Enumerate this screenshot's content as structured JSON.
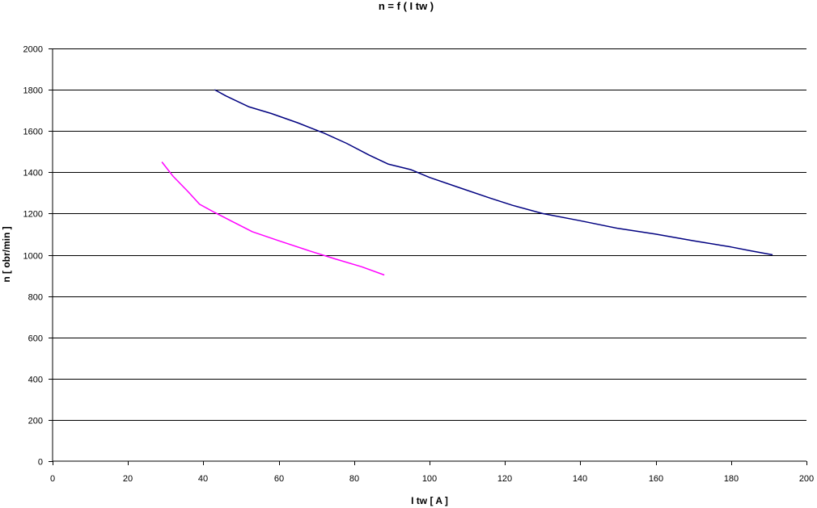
{
  "chart_data": {
    "type": "line",
    "title": "n = f ( I tw )",
    "xlabel": "I tw [ A ]",
    "ylabel": "n [ obr/min ]",
    "xlim": [
      0,
      200
    ],
    "ylim": [
      0,
      2000
    ],
    "x_ticks": [
      "0",
      "20",
      "40",
      "60",
      "80",
      "100",
      "120",
      "140",
      "160",
      "180",
      "200"
    ],
    "y_ticks": [
      "0",
      "200",
      "400",
      "600",
      "800",
      "1000",
      "1200",
      "1400",
      "1600",
      "1800",
      "2000"
    ],
    "grid": "horizontal",
    "legend": "none",
    "series": [
      {
        "color": "#000080",
        "points": [
          [
            43,
            1800
          ],
          [
            46,
            1770
          ],
          [
            52,
            1718
          ],
          [
            58,
            1685
          ],
          [
            65,
            1640
          ],
          [
            72,
            1590
          ],
          [
            78,
            1540
          ],
          [
            84,
            1483
          ],
          [
            89,
            1440
          ],
          [
            95,
            1413
          ],
          [
            100,
            1375
          ],
          [
            108,
            1325
          ],
          [
            116,
            1275
          ],
          [
            122,
            1240
          ],
          [
            130,
            1200
          ],
          [
            140,
            1165
          ],
          [
            150,
            1128
          ],
          [
            160,
            1100
          ],
          [
            170,
            1068
          ],
          [
            180,
            1038
          ],
          [
            185,
            1020
          ],
          [
            191,
            1000
          ]
        ]
      },
      {
        "color": "#ff00ff",
        "points": [
          [
            29,
            1450
          ],
          [
            32,
            1380
          ],
          [
            36,
            1305
          ],
          [
            39,
            1245
          ],
          [
            43,
            1205
          ],
          [
            48,
            1158
          ],
          [
            53,
            1112
          ],
          [
            60,
            1068
          ],
          [
            68,
            1020
          ],
          [
            75,
            980
          ],
          [
            82,
            942
          ],
          [
            88,
            902
          ]
        ]
      }
    ]
  }
}
